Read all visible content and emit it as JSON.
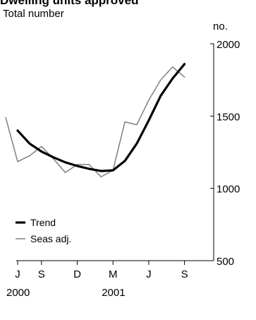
{
  "title": "Dwelling units approved",
  "subtitle": "Total number",
  "chart_data": {
    "type": "line",
    "y_unit": "no.",
    "ylim": [
      500,
      2000
    ],
    "y_ticks": [
      500,
      1000,
      1500,
      2000
    ],
    "x_range": [
      "2000-07",
      "2001-09"
    ],
    "x_ticks": [
      {
        "label": "J",
        "date": "2000-07"
      },
      {
        "label": "S",
        "date": "2000-09"
      },
      {
        "label": "D",
        "date": "2000-12"
      },
      {
        "label": "M",
        "date": "2001-03"
      },
      {
        "label": "J",
        "date": "2001-06"
      },
      {
        "label": "S",
        "date": "2001-09"
      }
    ],
    "x_year_labels": [
      {
        "label": "2000",
        "date": "2000-07"
      },
      {
        "label": "2001",
        "date": "2001-03"
      }
    ],
    "grid": false,
    "legend_position": "bottom-left",
    "legend": [
      "Trend",
      "Seas adj."
    ],
    "series": [
      {
        "name": "Trend",
        "color": "#000000",
        "style": "thick",
        "x": [
          "2000-07",
          "2000-08",
          "2000-09",
          "2000-10",
          "2000-11",
          "2000-12",
          "2001-01",
          "2001-02",
          "2001-03",
          "2001-04",
          "2001-05",
          "2001-06",
          "2001-07",
          "2001-08",
          "2001-09"
        ],
        "values": [
          1400,
          1310,
          1255,
          1215,
          1180,
          1155,
          1135,
          1120,
          1125,
          1190,
          1310,
          1470,
          1640,
          1760,
          1860
        ]
      },
      {
        "name": "Seas adj.",
        "color": "#7f7f7f",
        "style": "thin",
        "x": [
          "2000-06",
          "2000-07",
          "2000-08",
          "2000-09",
          "2000-10",
          "2000-11",
          "2000-12",
          "2001-01",
          "2001-02",
          "2001-03",
          "2001-04",
          "2001-05",
          "2001-06",
          "2001-07",
          "2001-08",
          "2001-09"
        ],
        "values": [
          1490,
          1185,
          1225,
          1290,
          1205,
          1110,
          1165,
          1165,
          1080,
          1125,
          1460,
          1440,
          1610,
          1750,
          1840,
          1770
        ]
      }
    ]
  }
}
